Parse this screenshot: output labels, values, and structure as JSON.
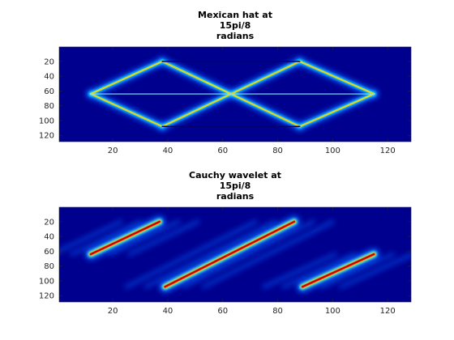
{
  "chart_data": [
    {
      "type": "heatmap",
      "title_lines": [
        "Mexican hat at",
        "15pi/8",
        "radians"
      ],
      "xlim": [
        0.5,
        128.5
      ],
      "ylim": [
        0.5,
        128.5
      ],
      "y_reversed": true,
      "x_ticks": [
        20,
        40,
        60,
        80,
        100,
        120
      ],
      "y_ticks": [
        20,
        40,
        60,
        80,
        100,
        120
      ],
      "colormap": "jet",
      "grid": false,
      "features": {
        "diamond_vertices": [
          [
            38,
            20
          ],
          [
            88,
            20
          ],
          [
            115,
            64
          ],
          [
            88,
            108
          ],
          [
            38,
            108
          ],
          [
            12,
            64
          ]
        ],
        "cross_lines": [
          [
            [
              38,
              20
            ],
            [
              88,
              108
            ]
          ],
          [
            [
              88,
              20
            ],
            [
              38,
              108
            ]
          ]
        ],
        "mid_line": [
          [
            12,
            64
          ],
          [
            115,
            64
          ]
        ],
        "dark_lines": [
          [
            [
              38,
              20
            ],
            [
              88,
              20
            ]
          ],
          [
            [
              38,
              108
            ],
            [
              88,
              108
            ]
          ]
        ]
      }
    },
    {
      "type": "heatmap",
      "title_lines": [
        "Cauchy wavelet at",
        "15pi/8",
        "radians"
      ],
      "xlim": [
        0.5,
        128.5
      ],
      "ylim": [
        0.5,
        128.5
      ],
      "y_reversed": true,
      "x_ticks": [
        20,
        40,
        60,
        80,
        100,
        120
      ],
      "y_ticks": [
        20,
        40,
        60,
        80,
        100,
        120
      ],
      "colormap": "jet",
      "grid": false,
      "features": {
        "ridges": [
          [
            [
              12,
              64
            ],
            [
              37,
              20
            ]
          ],
          [
            [
              39,
              108
            ],
            [
              86,
              20
            ]
          ],
          [
            [
              89,
              108
            ],
            [
              115,
              64
            ]
          ]
        ]
      }
    }
  ]
}
